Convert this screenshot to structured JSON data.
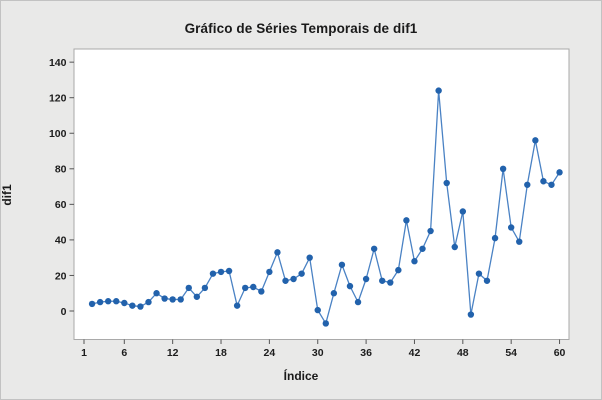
{
  "window": {
    "background": "#e9e9e8",
    "border_color": "#c2c2c2",
    "plot_background": "#ffffff",
    "plot_border_color": "#a9a9a9"
  },
  "chart_data": {
    "type": "line",
    "title": "Gráfico de Séries Temporais de dif1",
    "xlabel": "Índice",
    "ylabel": "dif1",
    "legend": "none",
    "grid": false,
    "marker": "circle",
    "marker_color": "#2262ac",
    "line_color": "#4a82c4",
    "tick_color": "#555555",
    "x_ticks": [
      1,
      6,
      12,
      18,
      24,
      30,
      36,
      42,
      48,
      54,
      60
    ],
    "y_ticks": [
      0,
      20,
      40,
      60,
      80,
      100,
      120,
      140
    ],
    "xlim": [
      -0.3,
      61.2
    ],
    "ylim": [
      -16,
      147
    ],
    "x": [
      2,
      3,
      4,
      5,
      6,
      7,
      8,
      9,
      10,
      11,
      12,
      13,
      14,
      15,
      16,
      17,
      18,
      19,
      20,
      21,
      22,
      23,
      24,
      25,
      26,
      27,
      28,
      29,
      30,
      31,
      32,
      33,
      34,
      35,
      36,
      37,
      38,
      39,
      40,
      41,
      42,
      43,
      44,
      45,
      46,
      47,
      48,
      49,
      50,
      51,
      52,
      53,
      54,
      55,
      56,
      57,
      58,
      59,
      60
    ],
    "series": [
      {
        "name": "dif1",
        "values": [
          4,
          5,
          5.5,
          5.5,
          4.5,
          3,
          2.5,
          5,
          10,
          7,
          6.5,
          6.5,
          13,
          8,
          13,
          21,
          22,
          22.5,
          3,
          13,
          13.5,
          11,
          22,
          33,
          17,
          18,
          21,
          30,
          0.5,
          -7,
          10,
          26,
          14,
          5,
          18,
          35,
          17,
          16,
          23,
          51,
          28,
          35,
          45,
          124,
          72,
          36,
          56,
          -2,
          21,
          17,
          41,
          80,
          47,
          39,
          71,
          96,
          73,
          71,
          78
        ]
      }
    ]
  }
}
